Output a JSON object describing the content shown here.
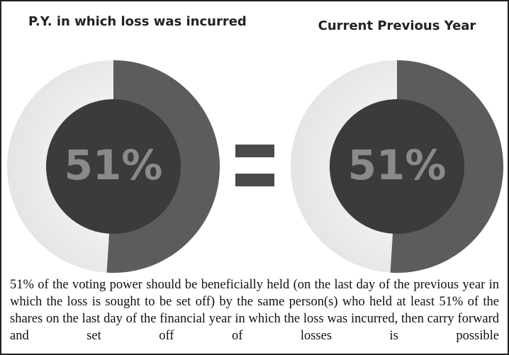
{
  "panels": [
    {
      "title": "P.Y. in which loss was incurred",
      "value": 51,
      "value_label": "51%"
    },
    {
      "title": "Current Previous Year",
      "value": 51,
      "value_label": "51%"
    }
  ],
  "caption": "51% of the voting power should be beneficially held (on the last day of the previous year in which the loss is sought to be set off) by the same person(s) who held at least 51% of the shares on the last day of the financial year in which the loss was incurred, then carry forward and set off of losses is possible"
}
